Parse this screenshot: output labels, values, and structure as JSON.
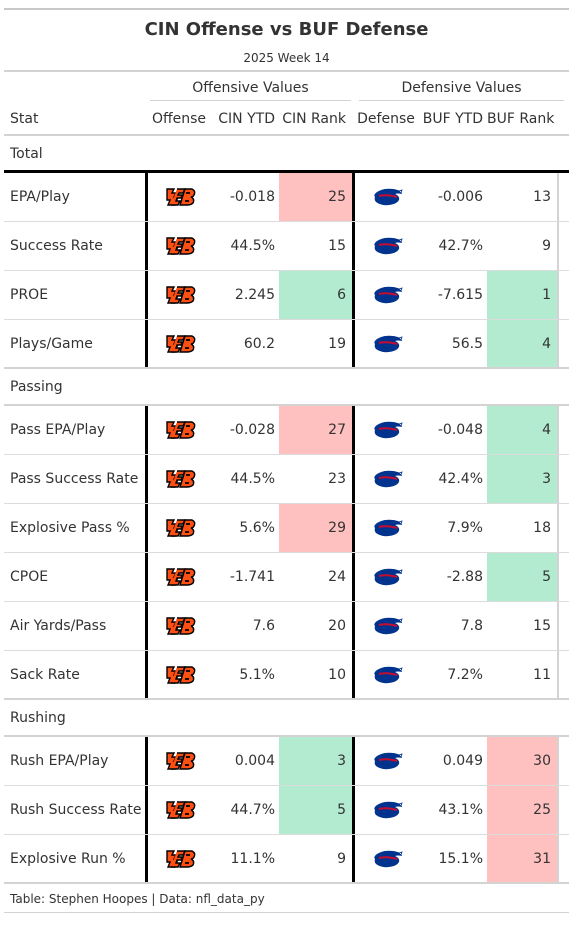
{
  "title": "CIN Offense vs BUF Defense",
  "subtitle": "2025 Week 14",
  "spanners": {
    "offense": "Offensive Values",
    "defense": "Defensive Values"
  },
  "columns": {
    "stat": "Stat",
    "offense": "Offense",
    "cin_ytd": "CIN YTD",
    "cin_rank": "CIN Rank",
    "defense": "Defense",
    "buf_ytd": "BUF YTD",
    "buf_rank": "BUF Rank"
  },
  "icons": {
    "offense": "bengals-logo-icon",
    "defense": "bills-logo-icon"
  },
  "colors": {
    "good": "#b2ebcf",
    "bad": "#ffc0c0",
    "bengals_orange": "#fb4f14",
    "bills_blue": "#00338d",
    "bills_red": "#c60c30"
  },
  "groups": [
    {
      "label": "Total",
      "rows": [
        {
          "stat": "EPA/Play",
          "cin_ytd": "-0.018",
          "cin_rank": "25",
          "cin_rank_fill": "bad",
          "buf_ytd": "-0.006",
          "buf_rank": "13",
          "buf_rank_fill": ""
        },
        {
          "stat": "Success Rate",
          "cin_ytd": "44.5%",
          "cin_rank": "15",
          "cin_rank_fill": "",
          "buf_ytd": "42.7%",
          "buf_rank": "9",
          "buf_rank_fill": ""
        },
        {
          "stat": "PROE",
          "cin_ytd": "2.245",
          "cin_rank": "6",
          "cin_rank_fill": "good",
          "buf_ytd": "-7.615",
          "buf_rank": "1",
          "buf_rank_fill": "good"
        },
        {
          "stat": "Plays/Game",
          "cin_ytd": "60.2",
          "cin_rank": "19",
          "cin_rank_fill": "",
          "buf_ytd": "56.5",
          "buf_rank": "4",
          "buf_rank_fill": "good"
        }
      ]
    },
    {
      "label": "Passing",
      "rows": [
        {
          "stat": "Pass EPA/Play",
          "cin_ytd": "-0.028",
          "cin_rank": "27",
          "cin_rank_fill": "bad",
          "buf_ytd": "-0.048",
          "buf_rank": "4",
          "buf_rank_fill": "good"
        },
        {
          "stat": "Pass Success Rate",
          "cin_ytd": "44.5%",
          "cin_rank": "23",
          "cin_rank_fill": "",
          "buf_ytd": "42.4%",
          "buf_rank": "3",
          "buf_rank_fill": "good"
        },
        {
          "stat": "Explosive Pass %",
          "cin_ytd": "5.6%",
          "cin_rank": "29",
          "cin_rank_fill": "bad",
          "buf_ytd": "7.9%",
          "buf_rank": "18",
          "buf_rank_fill": ""
        },
        {
          "stat": "CPOE",
          "cin_ytd": "-1.741",
          "cin_rank": "24",
          "cin_rank_fill": "",
          "buf_ytd": "-2.88",
          "buf_rank": "5",
          "buf_rank_fill": "good"
        },
        {
          "stat": "Air Yards/Pass",
          "cin_ytd": "7.6",
          "cin_rank": "20",
          "cin_rank_fill": "",
          "buf_ytd": "7.8",
          "buf_rank": "15",
          "buf_rank_fill": ""
        },
        {
          "stat": "Sack Rate",
          "cin_ytd": "5.1%",
          "cin_rank": "10",
          "cin_rank_fill": "",
          "buf_ytd": "7.2%",
          "buf_rank": "11",
          "buf_rank_fill": ""
        }
      ]
    },
    {
      "label": "Rushing",
      "rows": [
        {
          "stat": "Rush EPA/Play",
          "cin_ytd": "0.004",
          "cin_rank": "3",
          "cin_rank_fill": "good",
          "buf_ytd": "0.049",
          "buf_rank": "30",
          "buf_rank_fill": "bad"
        },
        {
          "stat": "Rush Success Rate",
          "cin_ytd": "44.7%",
          "cin_rank": "5",
          "cin_rank_fill": "good",
          "buf_ytd": "43.1%",
          "buf_rank": "25",
          "buf_rank_fill": "bad"
        },
        {
          "stat": "Explosive Run %",
          "cin_ytd": "11.1%",
          "cin_rank": "9",
          "cin_rank_fill": "",
          "buf_ytd": "15.1%",
          "buf_rank": "31",
          "buf_rank_fill": "bad"
        }
      ]
    }
  ],
  "footer": "Table: Stephen Hoopes | Data: nfl_data_py"
}
